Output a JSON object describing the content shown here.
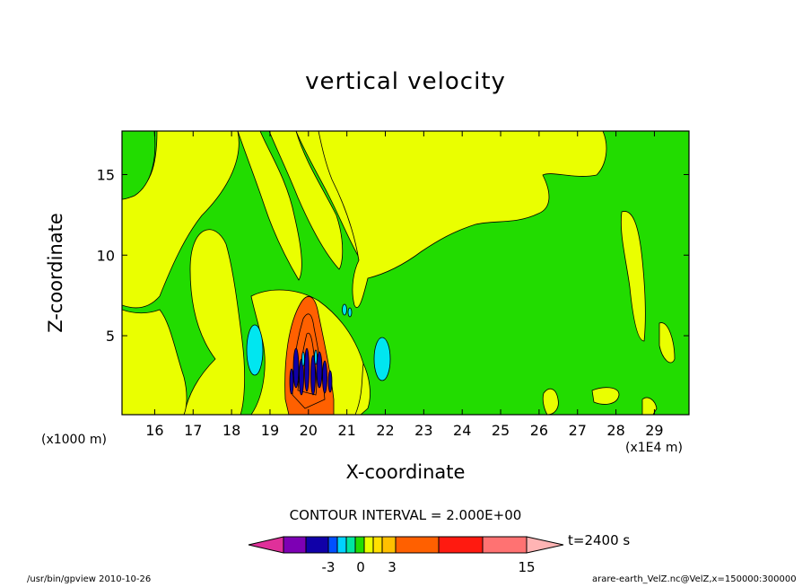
{
  "chart_data": {
    "type": "heatmap",
    "title": "vertical velocity",
    "xlabel": "X-coordinate",
    "ylabel": "Z-coordinate",
    "x_unit_note": "(x1000 m)",
    "x_scale_note": "(x1E4 m)",
    "x_ticks": [
      "16",
      "17",
      "18",
      "19",
      "20",
      "21",
      "22",
      "23",
      "24",
      "25",
      "26",
      "27",
      "28",
      "29"
    ],
    "y_ticks": [
      "5",
      "10",
      "15"
    ],
    "xlim": [
      15.15,
      29.9
    ],
    "ylim": [
      0.1,
      17.7
    ],
    "contour_interval_label": "CONTOUR INTERVAL = 2.000E+00",
    "time_label": "t=2400 s",
    "colorbar_ticks": [
      "-3",
      "0",
      "3",
      "15"
    ],
    "colorbar_colors": [
      "#e0309a",
      "#7d00b4",
      "#1000a8",
      "#0050ff",
      "#00d2ff",
      "#00e6a0",
      "#22dc00",
      "#eaff00",
      "#ffe000",
      "#ffc000",
      "#ff6000",
      "#ff1a10",
      "#ff7272",
      "#ffb4b4"
    ],
    "background_color": "#22dc00",
    "positive_color": "#eaff00",
    "negative_color": "#00e6f0",
    "core_color": "#ff6000",
    "grid": false
  },
  "footer": {
    "left": "/usr/bin/gpview   2010-10-26",
    "right": "arare-earth_VelZ.nc@VelZ,x=150000:300000"
  }
}
